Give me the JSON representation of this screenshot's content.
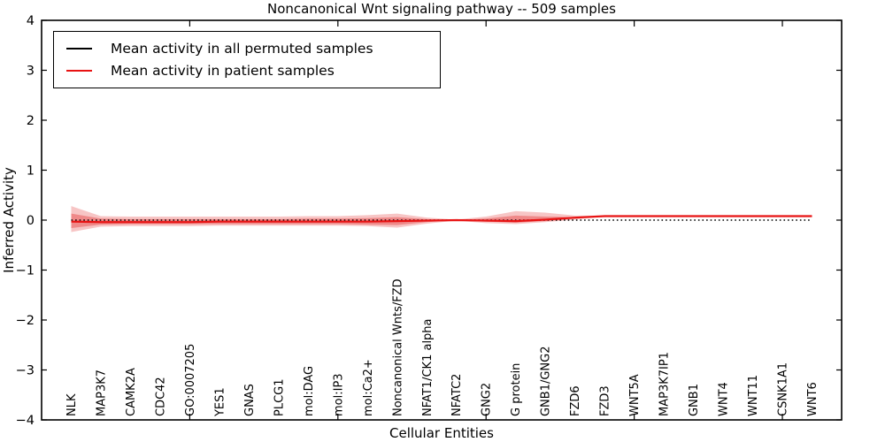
{
  "title": "Noncanonical Wnt signaling pathway -- 509 samples",
  "legend": {
    "items": [
      {
        "label": "Mean activity in all permuted samples",
        "color": "#000000"
      },
      {
        "label": "Mean activity in patient samples",
        "color": "#e81313"
      }
    ],
    "position": "upper left"
  },
  "axes": {
    "ylabel": "Inferred Activity",
    "xlabel": "Cellular Entities",
    "yticks": [
      4,
      3,
      2,
      1,
      0,
      -1,
      -2,
      -3,
      -4
    ],
    "ylim": [
      -4,
      4
    ],
    "xlim": [
      0,
      27
    ],
    "x_major_ticks": [
      5,
      10,
      15,
      20,
      25
    ],
    "grid": false,
    "tick_direction": "in"
  },
  "chart_data": {
    "type": "line",
    "title": "Noncanonical Wnt signaling pathway -- 509 samples",
    "xlabel": "Cellular Entities",
    "ylabel": "Inferred Activity",
    "ylim": [
      -4,
      4
    ],
    "categories": [
      "NLK",
      "MAP3K7",
      "CAMK2A",
      "CDC42",
      "GO:0007205",
      "YES1",
      "GNAS",
      "PLCG1",
      "mol:DAG",
      "mol:IP3",
      "mol:Ca2+",
      "Noncanonical Wnts/FZD",
      "NFAT1/CK1 alpha",
      "NFATC2",
      "GNG2",
      "G protein",
      "GNB1/GNG2",
      "FZD6",
      "FZD3",
      "WNT5A",
      "MAP3K7IP1",
      "GNB1",
      "WNT4",
      "WNT11",
      "CSNK1A1",
      "WNT6"
    ],
    "series": [
      {
        "name": "Mean activity in all permuted samples",
        "color": "#000000",
        "line_style": "dotted",
        "width": 1.6,
        "values": [
          0,
          0,
          0,
          0,
          0,
          0,
          0,
          0,
          0,
          0,
          0,
          0,
          0,
          0,
          0,
          0,
          0,
          0,
          0,
          0,
          0,
          0,
          0,
          0,
          0,
          0
        ]
      },
      {
        "name": "Mean activity in patient samples",
        "color": "#e81313",
        "line_style": "solid",
        "width": 2.2,
        "values": [
          -0.03,
          -0.04,
          -0.04,
          -0.04,
          -0.04,
          -0.03,
          -0.03,
          -0.03,
          -0.03,
          -0.03,
          -0.03,
          -0.02,
          -0.01,
          0,
          -0.01,
          -0.02,
          0.01,
          0.05,
          0.08,
          0.08,
          0.08,
          0.08,
          0.08,
          0.08,
          0.08,
          0.08
        ]
      }
    ],
    "bands": [
      {
        "name": "outer-spread",
        "color": "rgba(228,48,48,0.28)",
        "upper": [
          0.28,
          0.08,
          0.07,
          0.07,
          0.07,
          0.07,
          0.07,
          0.07,
          0.08,
          0.08,
          0.1,
          0.13,
          0.05,
          0.01,
          0.07,
          0.18,
          0.15,
          0.09,
          0.09,
          0.09,
          0.09,
          0.09,
          0.09,
          0.09,
          0.09,
          0.09
        ],
        "lower": [
          -0.24,
          -0.13,
          -0.12,
          -0.12,
          -0.12,
          -0.11,
          -0.11,
          -0.11,
          -0.11,
          -0.11,
          -0.12,
          -0.15,
          -0.07,
          -0.01,
          -0.06,
          -0.08,
          -0.04,
          0.01,
          0.07,
          0.07,
          0.07,
          0.07,
          0.07,
          0.07,
          0.07,
          0.07
        ]
      },
      {
        "name": "inner-spread",
        "color": "rgba(228,48,48,0.40)",
        "upper": [
          0.13,
          0.03,
          0.02,
          0.02,
          0.02,
          0.02,
          0.02,
          0.02,
          0.03,
          0.03,
          0.04,
          0.06,
          0.02,
          0.005,
          0.03,
          0.09,
          0.07,
          0.06,
          0.085,
          0.085,
          0.085,
          0.085,
          0.085,
          0.085,
          0.085,
          0.085
        ],
        "lower": [
          -0.16,
          -0.09,
          -0.08,
          -0.08,
          -0.08,
          -0.08,
          -0.08,
          -0.08,
          -0.08,
          -0.08,
          -0.09,
          -0.1,
          -0.04,
          -0.005,
          -0.03,
          -0.05,
          -0.02,
          0.03,
          0.075,
          0.075,
          0.075,
          0.075,
          0.075,
          0.075,
          0.075,
          0.075
        ]
      }
    ]
  }
}
